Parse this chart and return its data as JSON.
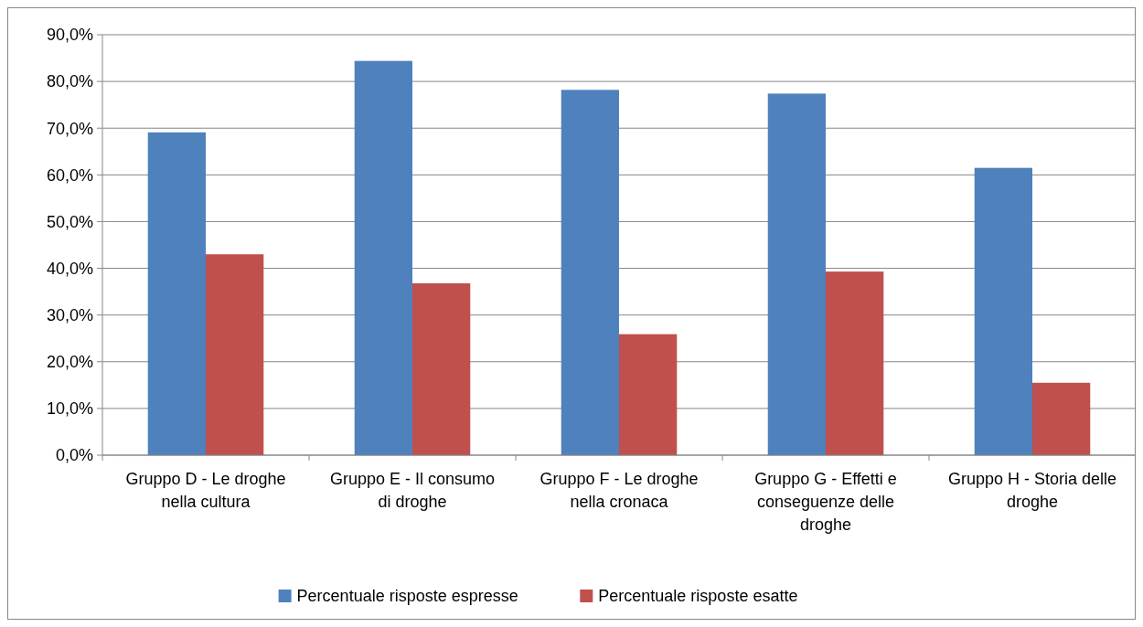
{
  "chart_data": {
    "type": "bar",
    "categories": [
      "Gruppo D - Le droghe nella cultura",
      "Gruppo E - Il consumo di droghe",
      "Gruppo F - Le droghe nella cronaca",
      "Gruppo G - Effetti e conseguenze delle droghe",
      "Gruppo H - Storia delle droghe"
    ],
    "series": [
      {
        "name": "Percentuale risposte espresse",
        "color": "#4f81bd",
        "values": [
          69.1,
          84.4,
          78.2,
          77.4,
          61.5
        ]
      },
      {
        "name": "Percentuale risposte esatte",
        "color": "#c0504d",
        "values": [
          43.0,
          36.8,
          25.9,
          39.3,
          15.5
        ]
      }
    ],
    "ylim": [
      0,
      90
    ],
    "yticks": [
      {
        "value": 0,
        "label": "0,0%"
      },
      {
        "value": 10,
        "label": "10,0%"
      },
      {
        "value": 20,
        "label": "20,0%"
      },
      {
        "value": 30,
        "label": "30,0%"
      },
      {
        "value": 40,
        "label": "40,0%"
      },
      {
        "value": 50,
        "label": "50,0%"
      },
      {
        "value": 60,
        "label": "60,0%"
      },
      {
        "value": 70,
        "label": "70,0%"
      },
      {
        "value": 80,
        "label": "80,0%"
      },
      {
        "value": 90,
        "label": "90,0%"
      }
    ],
    "grid": "y",
    "legend": "bottom"
  }
}
